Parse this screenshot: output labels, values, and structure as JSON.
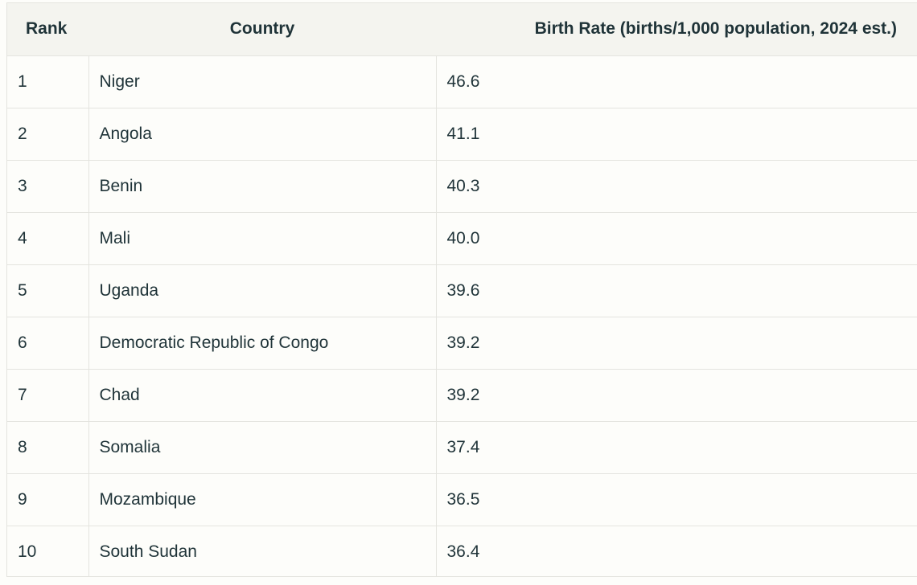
{
  "table": {
    "headers": {
      "rank": "Rank",
      "country": "Country",
      "rate": "Birth Rate (births/1,000 population, 2024 est.)"
    },
    "rows": [
      {
        "rank": "1",
        "country": "Niger",
        "rate": "46.6"
      },
      {
        "rank": "2",
        "country": "Angola",
        "rate": "41.1"
      },
      {
        "rank": "3",
        "country": "Benin",
        "rate": "40.3"
      },
      {
        "rank": "4",
        "country": "Mali",
        "rate": "40.0"
      },
      {
        "rank": "5",
        "country": "Uganda",
        "rate": "39.6"
      },
      {
        "rank": "6",
        "country": "Democratic Republic of Congo",
        "rate": "39.2"
      },
      {
        "rank": "7",
        "country": "Chad",
        "rate": "39.2"
      },
      {
        "rank": "8",
        "country": "Somalia",
        "rate": "37.4"
      },
      {
        "rank": "9",
        "country": "Mozambique",
        "rate": "36.5"
      },
      {
        "rank": "10",
        "country": "South Sudan",
        "rate": "36.4"
      }
    ]
  },
  "colors": {
    "header_bg": "#f4f4ef",
    "row_bg": "#fdfdfa",
    "border": "#e4e4df",
    "text": "#1f3338"
  }
}
